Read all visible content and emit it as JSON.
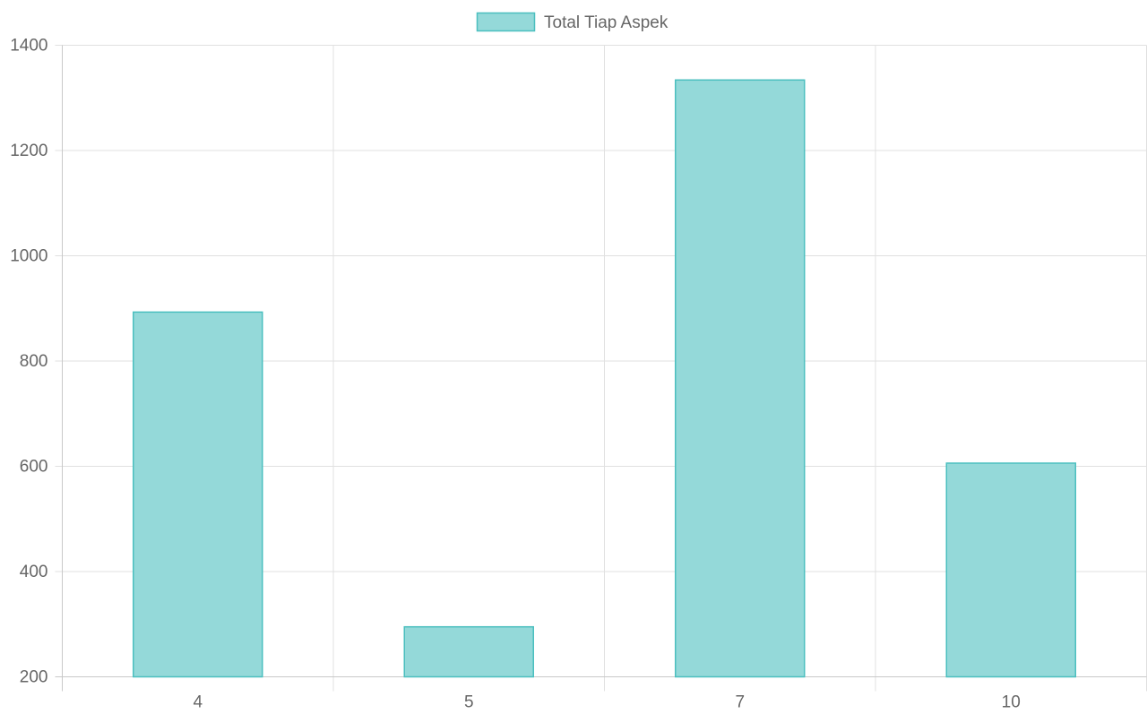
{
  "chart_data": {
    "type": "bar",
    "categories": [
      "4",
      "5",
      "7",
      "10"
    ],
    "series": [
      {
        "name": "Total Tiap Aspek",
        "values": [
          893,
          295,
          1334,
          606
        ]
      }
    ],
    "ylim": [
      200,
      1400
    ],
    "yticks": [
      200,
      400,
      600,
      800,
      1000,
      1200,
      1400
    ],
    "grid": true,
    "legend_position": "top-center",
    "colors": {
      "bar_fill": "#94d9d9",
      "bar_stroke": "#4bbfbf",
      "grid": "#e0e0e0",
      "axis": "#c8c8c8",
      "text": "#666666"
    }
  }
}
